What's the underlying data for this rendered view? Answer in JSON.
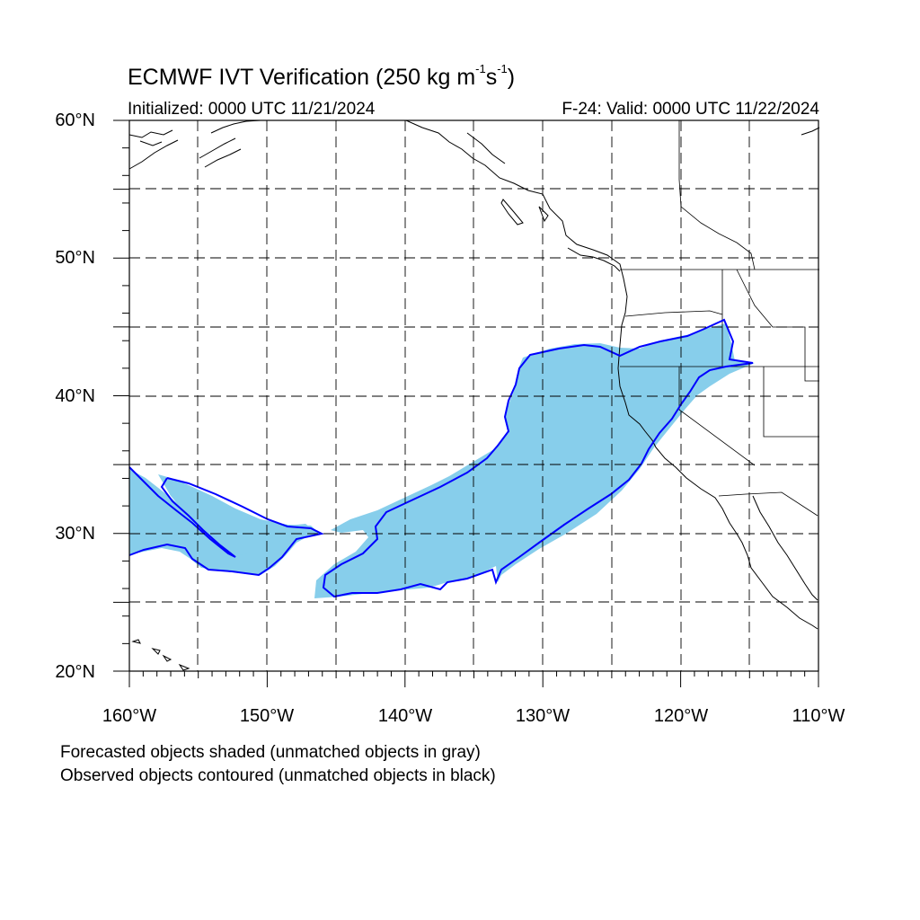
{
  "figure": {
    "title_prefix": "ECMWF IVT Verification (250 kg m",
    "title_exp1": "-1",
    "title_mid": "s",
    "title_exp2": "-1",
    "title_suffix": ")",
    "initialized": "Initialized: 0000 UTC 11/21/2024",
    "valid": "F-24: Valid: 0000 UTC 11/22/2024",
    "caption_line1": "Forecasted objects shaded (unmatched objects in gray)",
    "caption_line2": "Observed objects contoured (unmatched objects in black)"
  },
  "map": {
    "projection": "cylindrical-equidistant",
    "lon_range": [
      -160,
      -110
    ],
    "lat_range": [
      20,
      60
    ],
    "gridlines": "dashed",
    "lat_labels": [
      "60°N",
      "50°N",
      "40°N",
      "30°N",
      "20°N"
    ],
    "lon_labels": [
      "160°W",
      "150°W",
      "140°W",
      "130°W",
      "120°W",
      "110°W"
    ],
    "forecast_fill_color": "#87ceeb",
    "observed_contour_color": "#0000ff",
    "coastline_color": "#000000"
  }
}
